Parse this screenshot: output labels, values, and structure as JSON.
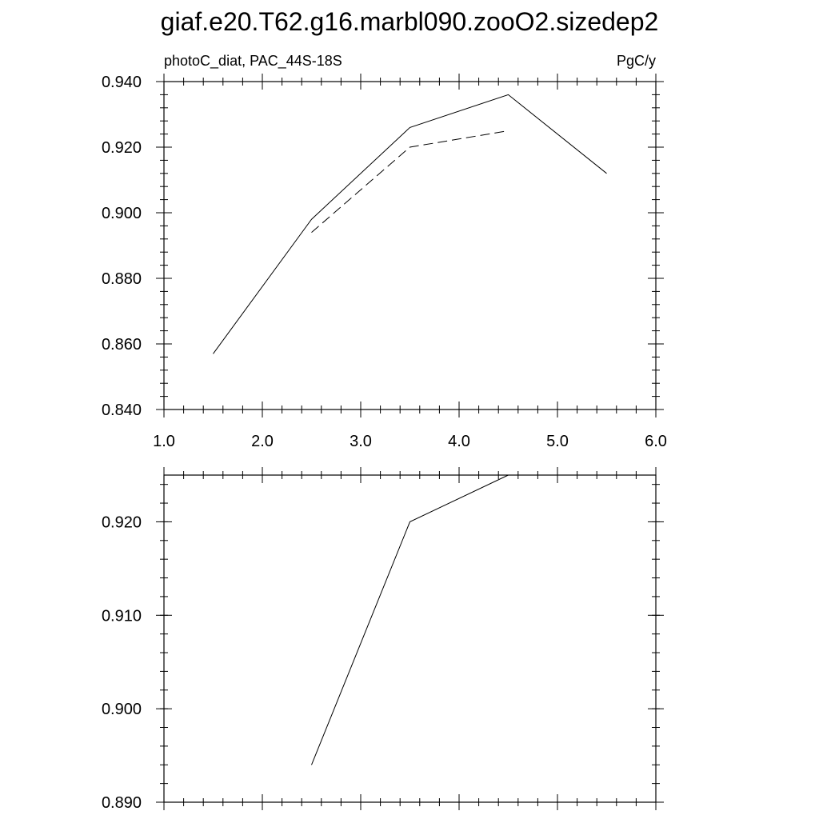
{
  "title": "giaf.e20.T62.g16.marbl090.zooO2.sizedep2",
  "chart_data": [
    {
      "type": "line",
      "left_label": "photoC_diat, PAC_44S-18S",
      "right_label": "PgC/y",
      "xlim": [
        1.0,
        6.0
      ],
      "ylim": [
        0.84,
        0.94
      ],
      "x_ticks": [
        1.0,
        2.0,
        3.0,
        4.0,
        5.0,
        6.0
      ],
      "x_tick_labels": [
        "1.0",
        "2.0",
        "3.0",
        "4.0",
        "5.0",
        "6.0"
      ],
      "y_ticks": [
        0.84,
        0.86,
        0.88,
        0.9,
        0.92,
        0.94
      ],
      "y_tick_labels": [
        "0.840",
        "0.860",
        "0.880",
        "0.900",
        "0.920",
        "0.940"
      ],
      "grid": false,
      "series": [
        {
          "style": "solid",
          "color": "#000000",
          "x": [
            1.5,
            2.5,
            3.5,
            4.5,
            5.5
          ],
          "y": [
            0.857,
            0.898,
            0.926,
            0.936,
            0.912
          ]
        },
        {
          "style": "dashed",
          "color": "#000000",
          "x": [
            2.5,
            3.5,
            4.5
          ],
          "y": [
            0.894,
            0.92,
            0.925
          ]
        }
      ]
    },
    {
      "type": "line",
      "xlim": [
        1.0,
        6.0
      ],
      "ylim": [
        0.89,
        0.925
      ],
      "x_ticks": [
        1.0,
        2.0,
        3.0,
        4.0,
        5.0,
        6.0
      ],
      "y_ticks": [
        0.89,
        0.9,
        0.91,
        0.92
      ],
      "y_tick_labels": [
        "0.890",
        "0.900",
        "0.910",
        "0.920"
      ],
      "grid": false,
      "series": [
        {
          "style": "solid",
          "color": "#000000",
          "x": [
            2.5,
            3.5,
            4.5
          ],
          "y": [
            0.894,
            0.92,
            0.925
          ]
        }
      ]
    }
  ]
}
